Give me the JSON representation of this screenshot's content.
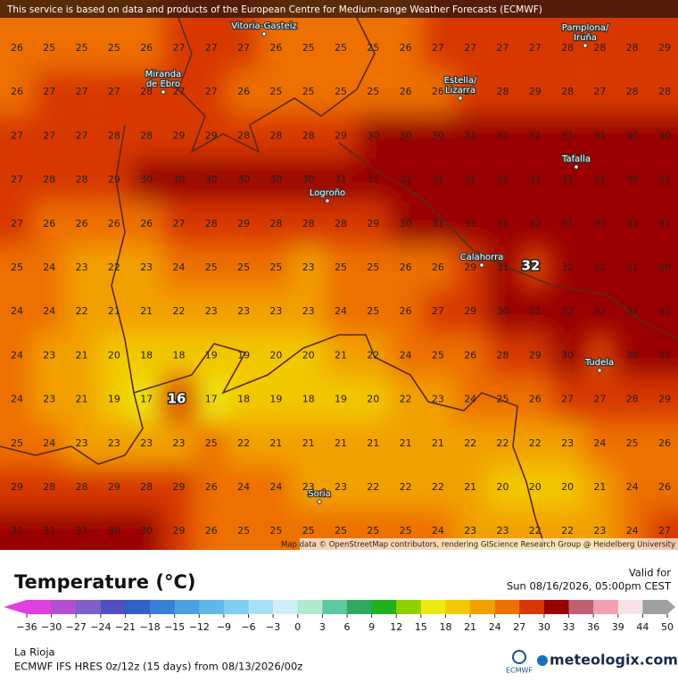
{
  "banner": "This service is based on data and products of the European Centre for Medium-range Weather Forecasts (ECMWF)",
  "map": {
    "grid": [
      [
        26,
        25,
        25,
        25,
        26,
        27,
        27,
        27,
        26,
        25,
        25,
        25,
        26,
        27,
        27,
        27,
        27,
        28,
        28,
        28,
        29
      ],
      [
        26,
        27,
        27,
        27,
        28,
        27,
        27,
        26,
        25,
        25,
        25,
        25,
        26,
        26,
        27,
        28,
        29,
        28,
        27,
        28,
        28
      ],
      [
        27,
        27,
        27,
        28,
        28,
        29,
        29,
        28,
        28,
        28,
        29,
        30,
        30,
        30,
        31,
        31,
        31,
        31,
        31,
        30,
        30
      ],
      [
        27,
        28,
        28,
        29,
        30,
        30,
        30,
        30,
        30,
        30,
        31,
        31,
        31,
        31,
        31,
        31,
        31,
        31,
        31,
        30,
        31
      ],
      [
        27,
        26,
        26,
        26,
        26,
        27,
        28,
        29,
        28,
        28,
        28,
        29,
        30,
        31,
        31,
        31,
        32,
        31,
        31,
        31,
        31
      ],
      [
        25,
        24,
        23,
        22,
        23,
        24,
        25,
        25,
        25,
        23,
        25,
        25,
        26,
        26,
        29,
        31,
        null,
        32,
        32,
        31,
        30
      ],
      [
        24,
        24,
        22,
        21,
        21,
        22,
        23,
        23,
        23,
        23,
        24,
        25,
        26,
        27,
        29,
        30,
        31,
        32,
        32,
        32,
        32
      ],
      [
        24,
        23,
        21,
        20,
        18,
        18,
        19,
        19,
        20,
        20,
        21,
        22,
        24,
        25,
        26,
        28,
        29,
        30,
        null,
        30,
        31
      ],
      [
        24,
        23,
        21,
        19,
        17,
        null,
        17,
        18,
        19,
        18,
        19,
        20,
        22,
        23,
        24,
        25,
        26,
        27,
        27,
        28,
        29
      ],
      [
        25,
        24,
        23,
        23,
        23,
        23,
        25,
        22,
        21,
        21,
        21,
        21,
        21,
        21,
        22,
        22,
        22,
        23,
        24,
        25,
        26
      ],
      [
        29,
        28,
        28,
        29,
        28,
        29,
        26,
        24,
        24,
        23,
        23,
        22,
        22,
        22,
        21,
        20,
        20,
        20,
        21,
        24,
        26
      ],
      [
        31,
        31,
        31,
        30,
        30,
        29,
        26,
        25,
        25,
        25,
        25,
        25,
        25,
        24,
        23,
        23,
        22,
        22,
        23,
        24,
        27
      ]
    ],
    "max_label": "32",
    "min_label": "16",
    "places": [
      "Vitoria-Gasteiz",
      "Pamplona/\nIruña",
      "Miranda\nde Ebro",
      "Estella/\nLizarra",
      "Tafalla",
      "Logroño",
      "Calahorra",
      "Tudela",
      "Soria"
    ],
    "attribution": "Map data © OpenStreetMap contributors, rendering GIScience Research Group @ Heidelberg University"
  },
  "legend": {
    "title": "Temperature (°C)",
    "valid_label": "Valid for",
    "valid_time": "Sun 08/16/2026, 05:00pm CEST",
    "ticks": [
      {
        "value": -36,
        "label": "−36"
      },
      {
        "value": -30,
        "label": "−30"
      },
      {
        "value": -27,
        "label": "−27"
      },
      {
        "value": -24,
        "label": "−24"
      },
      {
        "value": -21,
        "label": "−21"
      },
      {
        "value": -18,
        "label": "−18"
      },
      {
        "value": -15,
        "label": "−15"
      },
      {
        "value": -12,
        "label": "−12"
      },
      {
        "value": -9,
        "label": "−9"
      },
      {
        "value": -6,
        "label": "−6"
      },
      {
        "value": -3,
        "label": "−3"
      },
      0,
      3,
      6,
      9,
      12,
      15,
      18,
      21,
      24,
      27,
      30,
      33,
      36,
      39,
      44,
      50
    ],
    "colors": [
      "#e040e0",
      "#b050d0",
      "#8060c8",
      "#5050c0",
      "#3060c8",
      "#3a80d8",
      "#4aa0e0",
      "#60b8ea",
      "#80cff0",
      "#a8e0f4",
      "#d0eef8",
      "#b0e8d0",
      "#60c8a0",
      "#30a860",
      "#20b020",
      "#90d000",
      "#ecea10",
      "#f2c800",
      "#f2a000",
      "#ee7000",
      "#d83800",
      "#9a0000",
      "#c06070",
      "#f0a0b0",
      "#f8e0e8",
      "#a0a0a0"
    ]
  },
  "footer": {
    "region": "La Rioja",
    "model": "ECMWF IFS HRES 0z/12z (15 days) from  08/13/2026/00z",
    "logo": "ECMWF",
    "brand": "meteologix.com"
  }
}
